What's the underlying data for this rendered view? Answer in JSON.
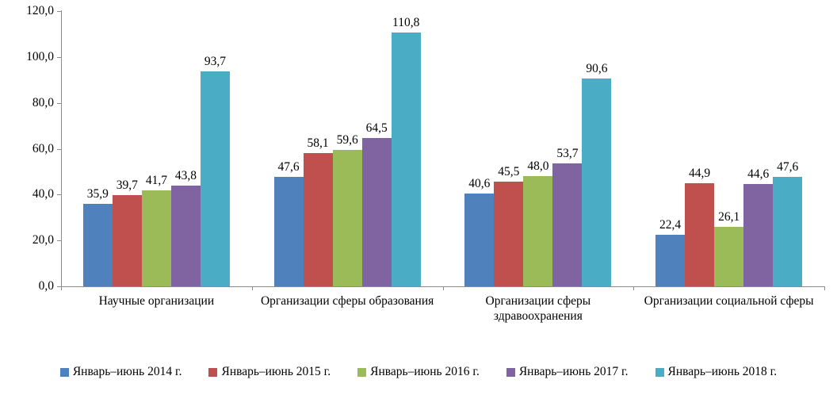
{
  "chart_data": {
    "type": "bar",
    "categories": [
      "Научные организации",
      "Организации сферы образования",
      "Организации сферы\nздравоохранения",
      "Организации социальной сферы"
    ],
    "series": [
      {
        "name": "Январь–июнь 2014 г.",
        "color": "#4F81BD",
        "values": [
          35.9,
          47.6,
          40.6,
          22.4
        ]
      },
      {
        "name": "Январь–июнь 2015 г.",
        "color": "#C0504D",
        "values": [
          39.7,
          58.1,
          45.5,
          44.9
        ]
      },
      {
        "name": "Январь–июнь 2016 г.",
        "color": "#9BBB59",
        "values": [
          41.7,
          59.6,
          48.0,
          26.1
        ]
      },
      {
        "name": "Январь–июнь 2017 г.",
        "color": "#8064A2",
        "values": [
          43.8,
          64.5,
          53.7,
          44.6
        ]
      },
      {
        "name": "Январь–июнь 2018 г.",
        "color": "#4BACC6",
        "values": [
          93.7,
          110.8,
          90.6,
          47.6
        ]
      }
    ],
    "title": "",
    "xlabel": "",
    "ylabel": "",
    "ylim": [
      0,
      120
    ],
    "ytick_step": 20,
    "ytick_labels": [
      "0,0",
      "20,0",
      "40,0",
      "60,0",
      "80,0",
      "100,0",
      "120,0"
    ],
    "grid": false,
    "value_labels": true,
    "decimal_separator": ",",
    "legend_position": "bottom",
    "axis_color": "#8C8C8C"
  }
}
